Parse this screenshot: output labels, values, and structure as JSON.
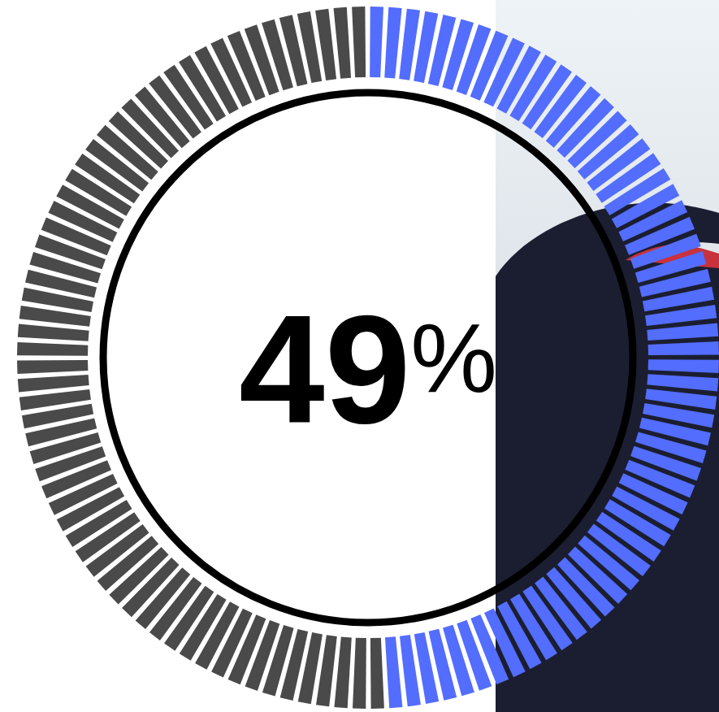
{
  "chart_data": {
    "type": "gauge",
    "values": [
      49
    ],
    "value_labels": [
      "49%"
    ],
    "ylim": [
      0,
      100
    ],
    "color": "#536dfe",
    "data_labels": true
  }
}
